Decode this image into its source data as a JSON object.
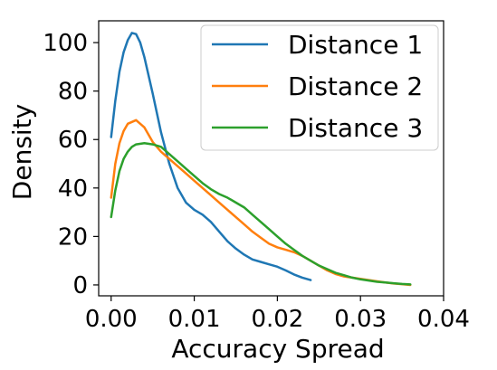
{
  "chart_data": {
    "type": "line",
    "title": "",
    "xlabel": "Accuracy Spread",
    "ylabel": "Density",
    "xlim": [
      -0.0015,
      0.04
    ],
    "ylim": [
      -4.5,
      109
    ],
    "xticks": [
      0.0,
      0.01,
      0.02,
      0.03,
      0.04
    ],
    "xtick_labels": [
      "0.00",
      "0.01",
      "0.02",
      "0.03",
      "0.04"
    ],
    "yticks": [
      0,
      20,
      40,
      60,
      80,
      100
    ],
    "ytick_labels": [
      "0",
      "20",
      "40",
      "60",
      "80",
      "100"
    ],
    "grid": false,
    "legend_position": "top-right",
    "series": [
      {
        "name": "Distance 1",
        "color": "#1f77b4",
        "points": [
          [
            0.0,
            61
          ],
          [
            0.0005,
            76
          ],
          [
            0.001,
            88
          ],
          [
            0.0015,
            96
          ],
          [
            0.002,
            101
          ],
          [
            0.0025,
            104
          ],
          [
            0.003,
            103.5
          ],
          [
            0.0035,
            100
          ],
          [
            0.004,
            94
          ],
          [
            0.005,
            79
          ],
          [
            0.006,
            63
          ],
          [
            0.007,
            50
          ],
          [
            0.008,
            40
          ],
          [
            0.009,
            34
          ],
          [
            0.01,
            31
          ],
          [
            0.011,
            29
          ],
          [
            0.012,
            26
          ],
          [
            0.013,
            22
          ],
          [
            0.014,
            18
          ],
          [
            0.015,
            15
          ],
          [
            0.016,
            12.5
          ],
          [
            0.017,
            10.5
          ],
          [
            0.018,
            9.5
          ],
          [
            0.019,
            8.5
          ],
          [
            0.02,
            7.5
          ],
          [
            0.021,
            6
          ],
          [
            0.022,
            4.3
          ],
          [
            0.023,
            3
          ],
          [
            0.024,
            2
          ]
        ]
      },
      {
        "name": "Distance 2",
        "color": "#ff7f0e",
        "points": [
          [
            0.0,
            36
          ],
          [
            0.0005,
            50
          ],
          [
            0.001,
            58.5
          ],
          [
            0.0015,
            63.5
          ],
          [
            0.002,
            66.5
          ],
          [
            0.003,
            68
          ],
          [
            0.004,
            65
          ],
          [
            0.005,
            59
          ],
          [
            0.006,
            55
          ],
          [
            0.007,
            52
          ],
          [
            0.008,
            49
          ],
          [
            0.009,
            46
          ],
          [
            0.01,
            43
          ],
          [
            0.011,
            40
          ],
          [
            0.012,
            37
          ],
          [
            0.013,
            34
          ],
          [
            0.014,
            31
          ],
          [
            0.015,
            28
          ],
          [
            0.016,
            25
          ],
          [
            0.017,
            22
          ],
          [
            0.018,
            19.5
          ],
          [
            0.019,
            17
          ],
          [
            0.02,
            15.5
          ],
          [
            0.021,
            14.5
          ],
          [
            0.022,
            13.5
          ],
          [
            0.023,
            12
          ],
          [
            0.024,
            10
          ],
          [
            0.025,
            8
          ],
          [
            0.026,
            6
          ],
          [
            0.027,
            4.5
          ],
          [
            0.028,
            3.5
          ],
          [
            0.029,
            3
          ],
          [
            0.03,
            2.5
          ],
          [
            0.031,
            2
          ],
          [
            0.032,
            1.5
          ],
          [
            0.033,
            1
          ],
          [
            0.034,
            0.6
          ],
          [
            0.035,
            0.3
          ],
          [
            0.036,
            0
          ]
        ]
      },
      {
        "name": "Distance 3",
        "color": "#2ca02c",
        "points": [
          [
            0.0,
            28
          ],
          [
            0.0005,
            39
          ],
          [
            0.001,
            47
          ],
          [
            0.0015,
            52
          ],
          [
            0.002,
            55
          ],
          [
            0.0025,
            57
          ],
          [
            0.003,
            58
          ],
          [
            0.004,
            58.5
          ],
          [
            0.005,
            58
          ],
          [
            0.006,
            57
          ],
          [
            0.007,
            54
          ],
          [
            0.008,
            51
          ],
          [
            0.009,
            48
          ],
          [
            0.01,
            45
          ],
          [
            0.011,
            42
          ],
          [
            0.012,
            39.5
          ],
          [
            0.013,
            37.5
          ],
          [
            0.014,
            36
          ],
          [
            0.015,
            34
          ],
          [
            0.016,
            32
          ],
          [
            0.017,
            29
          ],
          [
            0.018,
            26
          ],
          [
            0.019,
            23
          ],
          [
            0.02,
            20
          ],
          [
            0.021,
            17
          ],
          [
            0.022,
            14.5
          ],
          [
            0.023,
            12
          ],
          [
            0.024,
            10
          ],
          [
            0.025,
            8
          ],
          [
            0.026,
            6.5
          ],
          [
            0.027,
            5
          ],
          [
            0.028,
            4
          ],
          [
            0.029,
            3
          ],
          [
            0.03,
            2.3
          ],
          [
            0.031,
            1.8
          ],
          [
            0.032,
            1.3
          ],
          [
            0.033,
            1
          ],
          [
            0.034,
            0.7
          ],
          [
            0.035,
            0.4
          ],
          [
            0.036,
            0.2
          ]
        ]
      }
    ]
  }
}
